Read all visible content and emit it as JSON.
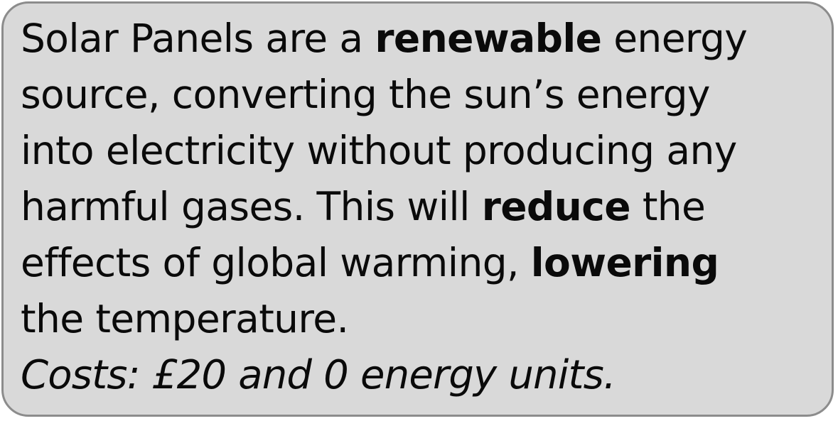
{
  "card": {
    "line1": {
      "pre": "Solar Panels are a ",
      "bold": "renewable",
      "post": " energy"
    },
    "line2": "source, converting the sun’s energy",
    "line3": "into electricity without producing any",
    "line4": {
      "pre": "harmful gases. This will ",
      "bold": "reduce",
      "post": " the"
    },
    "line5": {
      "pre": "effects of global warming, ",
      "bold": "lowering"
    },
    "line6": "the temperature.",
    "cost": "Costs: £20 and 0 energy units."
  },
  "colors": {
    "background": "#d9d9d9",
    "border": "#8c8c8c",
    "text": "#0a0a0a"
  }
}
